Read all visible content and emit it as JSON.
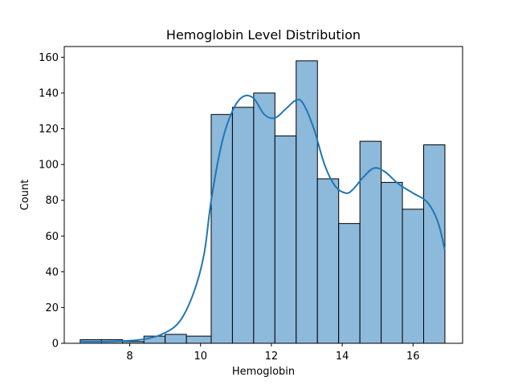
{
  "chart_data": {
    "type": "bar",
    "title": "Hemoglobin Level Distribution",
    "xlabel": "Hemoglobin",
    "ylabel": "Count",
    "xlim": [
      6.15,
      17.4
    ],
    "ylim": [
      0,
      166
    ],
    "xticks": [
      8,
      10,
      12,
      14,
      16
    ],
    "yticks": [
      0,
      20,
      40,
      60,
      80,
      100,
      120,
      140,
      160
    ],
    "bin_edges": [
      6.6,
      7.2,
      7.8,
      8.4,
      9.0,
      9.6,
      10.3,
      10.9,
      11.5,
      12.1,
      12.7,
      13.3,
      13.9,
      14.5,
      15.1,
      15.7,
      16.3,
      16.9
    ],
    "values": [
      2,
      2,
      1,
      4,
      5,
      4,
      128,
      132,
      140,
      116,
      158,
      92,
      67,
      113,
      90,
      75,
      111
    ],
    "kde": {
      "x": [
        6.6,
        7.5,
        8.3,
        8.9,
        9.4,
        9.8,
        10.1,
        10.3,
        10.6,
        10.9,
        11.2,
        11.5,
        11.8,
        12.1,
        12.4,
        12.7,
        12.9,
        13.2,
        13.5,
        13.8,
        14.1,
        14.3,
        14.6,
        14.9,
        15.2,
        15.6,
        16.0,
        16.4,
        16.7,
        16.9
      ],
      "y": [
        1,
        1,
        2,
        5,
        12,
        28,
        50,
        80,
        112,
        130,
        138,
        137,
        128,
        126,
        131,
        136,
        134,
        120,
        100,
        88,
        84,
        86,
        93,
        98,
        96,
        89,
        84,
        79,
        68,
        52
      ]
    },
    "grid": false,
    "legend": "none",
    "colors": {
      "bar_fill": "#8db9db",
      "bar_edge": "#000000",
      "kde_line": "#1f77b4"
    }
  }
}
